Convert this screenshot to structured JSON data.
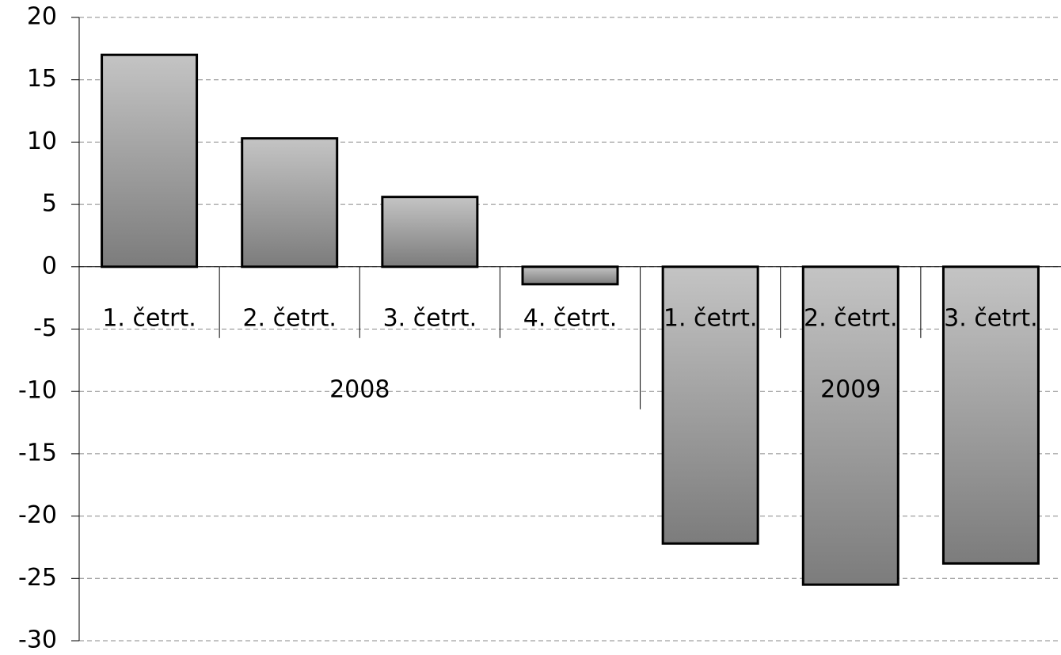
{
  "chart_data": {
    "type": "bar",
    "groups": [
      {
        "name": "2008",
        "categories": [
          "1. četrt.",
          "2. četrt.",
          "3. četrt.",
          "4. četrt."
        ],
        "values": [
          17,
          10.3,
          5.6,
          -1.4
        ]
      },
      {
        "name": "2009",
        "categories": [
          "1. četrt.",
          "2. četrt.",
          "3. četrt."
        ],
        "values": [
          -22.2,
          -25.5,
          -23.8
        ]
      }
    ],
    "color": "#a0a0a0",
    "ylim": [
      -30,
      20
    ],
    "yticks": [
      -30,
      -25,
      -20,
      -15,
      -10,
      -5,
      0,
      5,
      10,
      15,
      20
    ],
    "grid": true
  }
}
